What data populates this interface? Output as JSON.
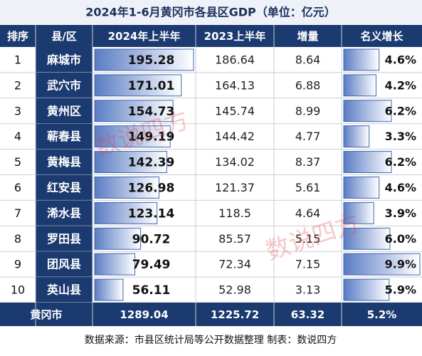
{
  "title": "2024年1-6月黄冈市各县区GDP（单位：亿元）",
  "table": {
    "headers": [
      "排序",
      "县/区",
      "2024年上半年",
      "2023上半年",
      "增量",
      "名义增长"
    ],
    "rows": [
      {
        "rank": 1,
        "county": "麻城市",
        "h1_2024": 195.28,
        "h1_2023": 186.64,
        "increase": 8.64,
        "growth": 4.6,
        "growth_label": "4.6%"
      },
      {
        "rank": 2,
        "county": "武穴市",
        "h1_2024": 171.01,
        "h1_2023": 164.13,
        "increase": 6.88,
        "growth": 4.2,
        "growth_label": "4.2%"
      },
      {
        "rank": 3,
        "county": "黄州区",
        "h1_2024": 154.73,
        "h1_2023": 145.74,
        "increase": 8.99,
        "growth": 6.2,
        "growth_label": "6.2%"
      },
      {
        "rank": 4,
        "county": "蕲春县",
        "h1_2024": 149.19,
        "h1_2023": 144.42,
        "increase": 4.77,
        "growth": 3.3,
        "growth_label": "3.3%"
      },
      {
        "rank": 5,
        "county": "黄梅县",
        "h1_2024": 142.39,
        "h1_2023": 134.02,
        "increase": 8.37,
        "growth": 6.2,
        "growth_label": "6.2%"
      },
      {
        "rank": 6,
        "county": "红安县",
        "h1_2024": 126.98,
        "h1_2023": 121.37,
        "increase": 5.61,
        "growth": 4.6,
        "growth_label": "4.6%"
      },
      {
        "rank": 7,
        "county": "浠水县",
        "h1_2024": 123.14,
        "h1_2023": 118.5,
        "increase": 4.64,
        "growth": 3.9,
        "growth_label": "3.9%"
      },
      {
        "rank": 8,
        "county": "罗田县",
        "h1_2024": 90.72,
        "h1_2023": 85.57,
        "increase": 5.15,
        "growth": 6.0,
        "growth_label": "6.0%"
      },
      {
        "rank": 9,
        "county": "团风县",
        "h1_2024": 79.49,
        "h1_2023": 72.34,
        "increase": 7.15,
        "growth": 9.9,
        "growth_label": "9.9%"
      },
      {
        "rank": 10,
        "county": "英山县",
        "h1_2024": 56.11,
        "h1_2023": 52.98,
        "increase": 3.13,
        "growth": 5.9,
        "growth_label": "5.9%"
      }
    ],
    "total": {
      "name": "黄冈市",
      "h1_2024": 1289.04,
      "h1_2023": 1225.72,
      "increase": 63.32,
      "growth_label": "5.2%"
    }
  },
  "footer": "数据来源：市县区统计局等公开数据整理   制表：数说四方",
  "watermark": "数说四方"
}
